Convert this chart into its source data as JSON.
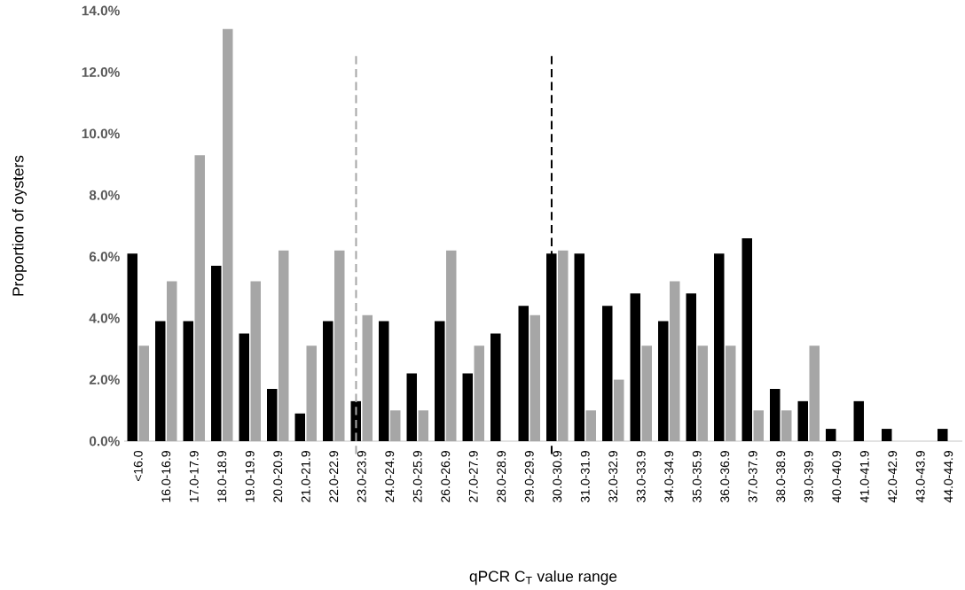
{
  "chart_data": {
    "type": "bar",
    "xlabel": "qPCR C$_{T}$ value range",
    "ylabel": "Proportion of oysters",
    "categories": [
      "<16.0",
      "16.0-16.9",
      "17.0-17.9",
      "18.0-18.9",
      "19.0-19.9",
      "20.0-20.9",
      "21.0-21.9",
      "22.0-22.9",
      "23.0-23.9",
      "24.0-24.9",
      "25.0-25.9",
      "26.0-26.9",
      "27.0-27.9",
      "28.0-28.9",
      "29.0-29.9",
      "30.0-30.9",
      "31.0-31.9",
      "32.0-32.9",
      "33.0-33.9",
      "34.0-34.9",
      "35.0-35.9",
      "36.0-36.9",
      "37.0-37.9",
      "38.0-38.9",
      "39.0-39.9",
      "40.0-40.9",
      "41.0-41.9",
      "42.0-42.9",
      "43.0-43.9",
      "44.0-44.9"
    ],
    "series": [
      {
        "color": "#000000",
        "values": [
          6.1,
          3.9,
          3.9,
          5.7,
          3.5,
          1.7,
          0.9,
          3.9,
          1.3,
          3.9,
          2.2,
          3.9,
          2.2,
          3.5,
          4.4,
          6.1,
          6.1,
          4.4,
          4.8,
          3.9,
          4.8,
          6.1,
          6.6,
          1.7,
          1.3,
          0.4,
          1.3,
          0.4,
          0,
          0.4
        ]
      },
      {
        "color": "#a6a6a6",
        "values": [
          3.1,
          5.2,
          9.3,
          13.4,
          5.2,
          6.2,
          3.1,
          6.2,
          4.1,
          1.0,
          1.0,
          6.2,
          3.1,
          0,
          4.1,
          6.2,
          1.0,
          2.0,
          3.1,
          5.2,
          3.1,
          3.1,
          1.0,
          1.0,
          3.1,
          0,
          0,
          0,
          0,
          0
        ]
      }
    ],
    "ylim": [
      0,
      14
    ],
    "yticks": [
      {
        "value": 0,
        "label": "0.0%"
      },
      {
        "value": 2,
        "label": "2.0%"
      },
      {
        "value": 4,
        "label": "4.0%"
      },
      {
        "value": 6,
        "label": "6.0%"
      },
      {
        "value": 8,
        "label": "8.0%"
      },
      {
        "value": 10,
        "label": "10.0%"
      },
      {
        "value": 12,
        "label": "12.0%"
      },
      {
        "value": 14,
        "label": "14.0%"
      }
    ],
    "ref_lines": [
      {
        "axis": "x",
        "value": "23.0-23.9",
        "color": "#a6a6a6",
        "line_style": "dashed"
      },
      {
        "axis": "x",
        "value": "30.0-30.9",
        "color": "#000000",
        "line_style": "dashed"
      }
    ],
    "grid": false
  }
}
